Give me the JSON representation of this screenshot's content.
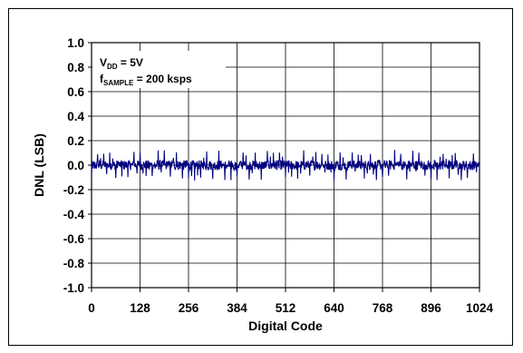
{
  "chart_data": {
    "type": "line",
    "title": "",
    "xlabel": "Digital Code",
    "ylabel": "DNL (LSB)",
    "xlim": [
      0,
      1024
    ],
    "ylim": [
      -1.0,
      1.0
    ],
    "xticks": [
      0,
      128,
      256,
      384,
      512,
      640,
      768,
      896,
      1024
    ],
    "yticks": [
      1.0,
      0.8,
      0.6,
      0.4,
      0.2,
      0.0,
      -0.2,
      -0.4,
      -0.6,
      -0.8,
      -1.0
    ],
    "xtick_labels": [
      "0",
      "128",
      "256",
      "384",
      "512",
      "640",
      "768",
      "896",
      "1024"
    ],
    "ytick_labels": [
      "1.0",
      "0.8",
      "0.6",
      "0.4",
      "0.2",
      "0.0",
      "-0.2",
      "-0.4",
      "-0.6",
      "-0.8",
      "-1.0"
    ],
    "grid": true,
    "series_color": "#000080",
    "annotations": {
      "vdd_main": "V",
      "vdd_sub": "DD",
      "vdd_rest": " = 5V",
      "fs_main": "f",
      "fs_sub": "SAMPLE",
      "fs_rest": " = 200 ksps"
    },
    "series": [
      {
        "name": "",
        "pattern_period": 32,
        "max_abs": 0.16,
        "typical_peak": 0.12,
        "values_note": "DNL stays within about ±0.16 LSB across all 1024 codes, with periodic spikes every 32 codes"
      }
    ]
  }
}
